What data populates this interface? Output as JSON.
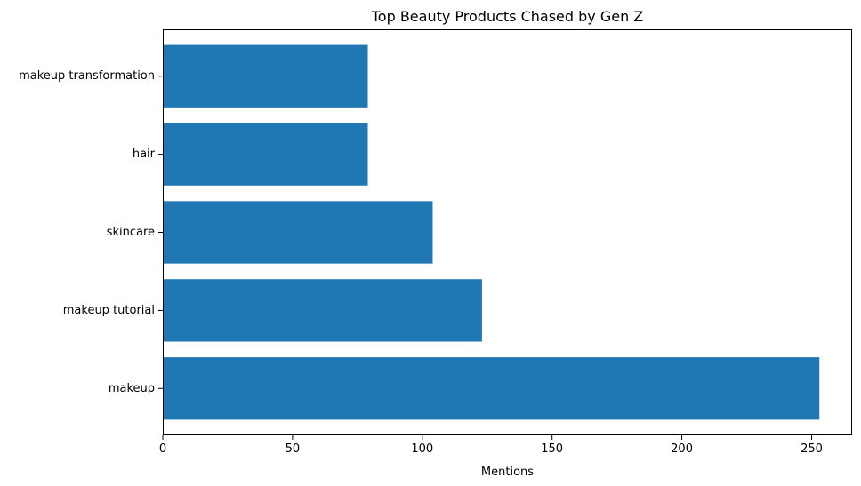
{
  "chart_data": {
    "type": "bar",
    "orientation": "horizontal",
    "title": "Top Beauty Products Chased by Gen Z",
    "xlabel": "Mentions",
    "ylabel": "",
    "categories": [
      "makeup",
      "makeup tutorial",
      "skincare",
      "hair",
      "makeup transformation"
    ],
    "values": [
      253,
      123,
      104,
      79,
      79
    ],
    "xlim": [
      0,
      265.6
    ],
    "xticks": [
      0,
      50,
      100,
      150,
      200,
      250
    ],
    "grid": false,
    "legend": "none",
    "bar_color": "#1f77b4"
  }
}
